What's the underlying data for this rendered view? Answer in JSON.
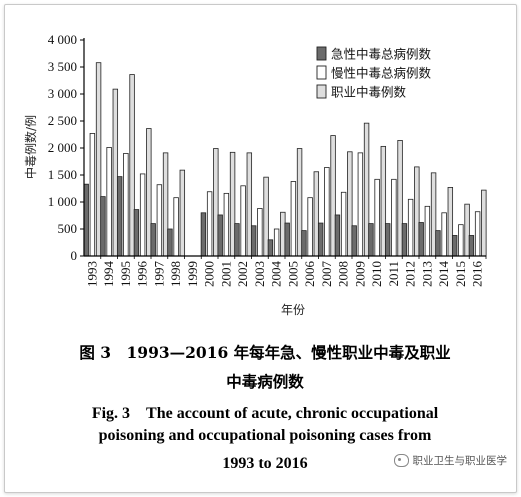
{
  "chart_data": {
    "type": "bar",
    "ylabel": "中毒例数/例",
    "xlabel": "年份",
    "ylim": [
      0,
      4000
    ],
    "yticks": [
      "0",
      "500",
      "1 000",
      "1 500",
      "2 000",
      "2 500",
      "3 000",
      "3 500",
      "4 000"
    ],
    "ytick_values": [
      0,
      500,
      1000,
      1500,
      2000,
      2500,
      3000,
      3500,
      4000
    ],
    "categories": [
      "1993",
      "1994",
      "1995",
      "1996",
      "1997",
      "1998",
      "1999",
      "2000",
      "2001",
      "2002",
      "2003",
      "2004",
      "2005",
      "2006",
      "2007",
      "2008",
      "2009",
      "2010",
      "2011",
      "2012",
      "2013",
      "2014",
      "2015",
      "2016"
    ],
    "legend_position": "top-right",
    "series": [
      {
        "name": "急性中毒总病例数",
        "color": "#6b6b6b",
        "values": [
          1330,
          1100,
          1470,
          860,
          600,
          500,
          0,
          800,
          760,
          600,
          560,
          300,
          610,
          470,
          610,
          760,
          560,
          600,
          600,
          600,
          620,
          470,
          380,
          380
        ]
      },
      {
        "name": "慢性中毒总病例数",
        "color": "#ffffff",
        "values": [
          2270,
          2010,
          1900,
          1520,
          1320,
          1080,
          0,
          1190,
          1160,
          1300,
          880,
          500,
          1380,
          1080,
          1640,
          1180,
          1910,
          1420,
          1420,
          1050,
          920,
          800,
          580,
          820
        ]
      },
      {
        "name": "职业中毒例数",
        "color": "#dedede",
        "values": [
          3580,
          3090,
          3360,
          2360,
          1910,
          1590,
          0,
          1990,
          1920,
          1910,
          1460,
          810,
          1990,
          1560,
          2230,
          1930,
          2460,
          2030,
          2140,
          1650,
          1540,
          1270,
          960,
          1220
        ]
      }
    ]
  },
  "caption": {
    "cn_line1": "图 3　1993—2016 年每年急、慢性职业中毒及职业",
    "cn_line2": "中毒病例数",
    "en_line1": "Fig. 3　The account of acute, chronic occupational",
    "en_line2": "poisoning and occupational poisoning cases from",
    "en_line3": "1993 to 2016"
  },
  "watermark": {
    "text": "职业卫生与职业医学",
    "icon": "wechat-icon"
  }
}
